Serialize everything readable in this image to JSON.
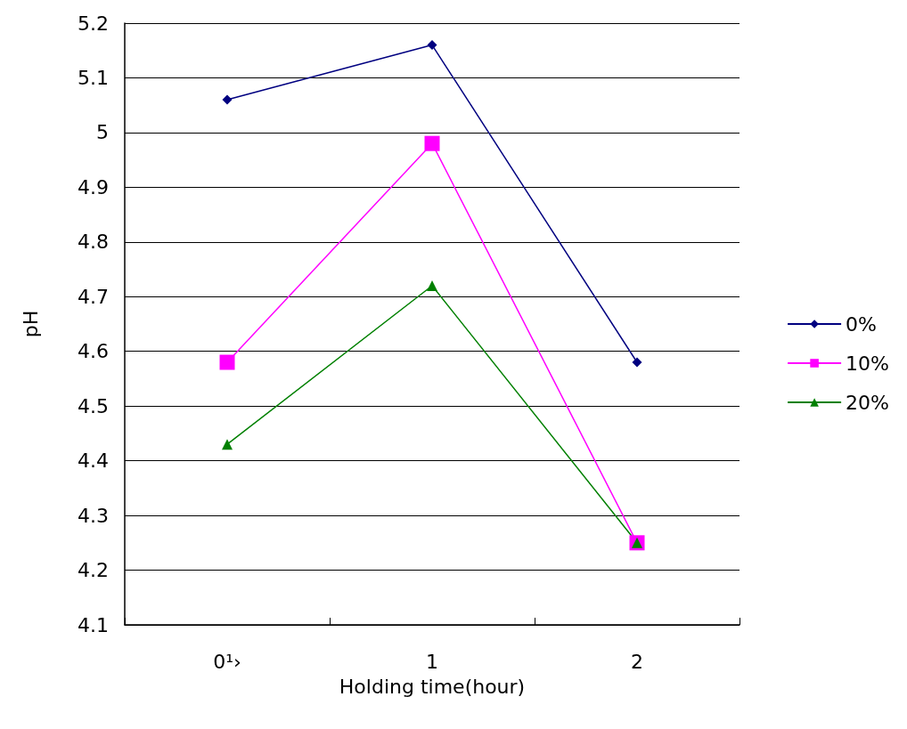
{
  "chart_data": {
    "type": "line",
    "xlabel": "Holding time(hour)",
    "ylabel": "pH",
    "categories": [
      "0¹›",
      "1",
      "2"
    ],
    "series": [
      {
        "name": "0%",
        "color": "#000080",
        "marker": "diamond",
        "values": [
          5.06,
          5.16,
          4.58
        ]
      },
      {
        "name": "10%",
        "color": "#ff00ff",
        "marker": "square",
        "values": [
          4.58,
          4.98,
          4.25
        ]
      },
      {
        "name": "20%",
        "color": "#008000",
        "marker": "triangle",
        "values": [
          4.43,
          4.72,
          4.25
        ]
      }
    ],
    "ylim": [
      4.1,
      5.2
    ],
    "yticks": [
      4.1,
      4.2,
      4.3,
      4.4,
      4.5,
      4.6,
      4.7,
      4.8,
      4.9,
      5,
      5.1,
      5.2
    ],
    "grid": "y",
    "legend": "right",
    "line_style": "solid"
  }
}
